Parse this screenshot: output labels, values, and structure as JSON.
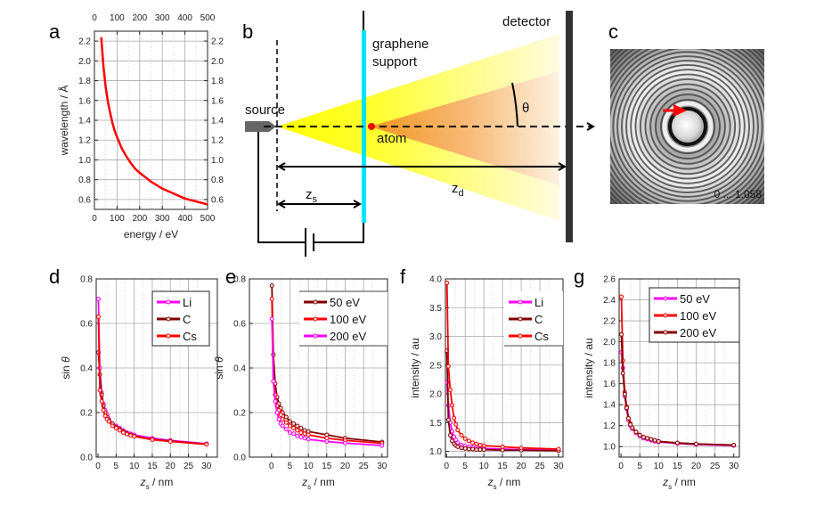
{
  "panel_labels": {
    "a": "a",
    "b": "b",
    "c": "c",
    "d": "d",
    "e": "e",
    "f": "f",
    "g": "g"
  },
  "diagram_b": {
    "source": "source",
    "graphene_line1": "graphene",
    "graphene_line2": "support",
    "detector": "detector",
    "atom": "atom",
    "theta": "θ",
    "zs_var": "z",
    "zs_sub": "s",
    "zd_var": "z",
    "zd_sub": "d",
    "colors": {
      "beam": "#ffff00",
      "cone": "#f08020",
      "support": "#00e5ff",
      "atom": "#ff0000",
      "detector": "#333333"
    }
  },
  "image_c": {
    "scale_label": "0 ... 1.058",
    "arrow_color": "#ff0000"
  },
  "chart_data": [
    {
      "id": "a",
      "type": "line",
      "xlabel": "energy / eV",
      "ylabel": "wavelength / Å",
      "xlim": [
        0,
        500
      ],
      "ylim": [
        0.5,
        2.3
      ],
      "xticks": [
        0,
        100,
        200,
        300,
        400,
        500
      ],
      "yticks": [
        0.6,
        0.8,
        1.0,
        1.2,
        1.4,
        1.6,
        1.8,
        2.0,
        2.2
      ],
      "top_axis_ticks": true,
      "right_axis_ticks": true,
      "grid": true,
      "series": [
        {
          "color": "#ff0000",
          "markers": false,
          "x": [
            30,
            40,
            50,
            60,
            70,
            80,
            90,
            100,
            120,
            140,
            160,
            180,
            200,
            250,
            300,
            350,
            400,
            450,
            500
          ],
          "y": [
            2.24,
            1.94,
            1.73,
            1.58,
            1.47,
            1.37,
            1.29,
            1.23,
            1.12,
            1.04,
            0.97,
            0.91,
            0.87,
            0.78,
            0.71,
            0.66,
            0.61,
            0.58,
            0.55
          ]
        }
      ]
    },
    {
      "id": "d",
      "type": "line",
      "xlabel": {
        "var": "z",
        "sub": "s",
        "unit": " / nm"
      },
      "ylabel": {
        "pre": "sin ",
        "var": "θ"
      },
      "xlim": [
        -0.5,
        33
      ],
      "ylim": [
        0,
        0.8
      ],
      "xticks": [
        0,
        5,
        10,
        15,
        20,
        25,
        30
      ],
      "yticks": [
        0.0,
        0.2,
        0.4,
        0.6,
        0.8
      ],
      "ytick_decimals": 1,
      "grid": true,
      "legend": "top-right",
      "series": [
        {
          "name": "Li",
          "color": "#ff00ff",
          "x": [
            0.1,
            0.5,
            1,
            1.5,
            2,
            2.5,
            3,
            4,
            5,
            6,
            7,
            8,
            9,
            10,
            15,
            20,
            30
          ],
          "y": [
            0.71,
            0.4,
            0.29,
            0.24,
            0.21,
            0.19,
            0.17,
            0.15,
            0.14,
            0.13,
            0.12,
            0.11,
            0.105,
            0.1,
            0.085,
            0.075,
            0.06
          ]
        },
        {
          "name": "C",
          "color": "#800000",
          "x": [
            0.1,
            0.5,
            1,
            1.5,
            2,
            2.5,
            3,
            4,
            5,
            6,
            7,
            8,
            9,
            10,
            15,
            20,
            30
          ],
          "y": [
            0.47,
            0.37,
            0.28,
            0.23,
            0.2,
            0.18,
            0.165,
            0.15,
            0.135,
            0.125,
            0.115,
            0.107,
            0.1,
            0.095,
            0.08,
            0.072,
            0.058
          ]
        },
        {
          "name": "Cs",
          "color": "#ff0000",
          "x": [
            0.1,
            0.5,
            1,
            1.5,
            2,
            2.5,
            3,
            4,
            5,
            6,
            7,
            8,
            9,
            10,
            15,
            20,
            30
          ],
          "y": [
            0.63,
            0.3,
            0.25,
            0.21,
            0.185,
            0.17,
            0.16,
            0.14,
            0.13,
            0.12,
            0.11,
            0.103,
            0.097,
            0.093,
            0.078,
            0.07,
            0.057
          ]
        }
      ]
    },
    {
      "id": "e",
      "type": "line",
      "xlabel": {
        "var": "z",
        "sub": "s",
        "unit": " / nm"
      },
      "ylabel": {
        "pre": "sin ",
        "var": "θ"
      },
      "xlim": [
        -6,
        31.5
      ],
      "ylim": [
        0,
        0.8
      ],
      "xticks": [
        0,
        5,
        10,
        15,
        20,
        25,
        30
      ],
      "yticks": [
        0.0,
        0.2,
        0.4,
        0.6,
        0.8
      ],
      "ytick_decimals": 1,
      "grid": true,
      "legend": "top-right",
      "series": [
        {
          "name": "50 eV",
          "color": "#800000",
          "x": [
            0.1,
            0.5,
            1,
            1.5,
            2,
            2.5,
            3,
            4,
            5,
            6,
            7,
            8,
            9,
            10,
            15,
            20,
            30
          ],
          "y": [
            0.77,
            0.46,
            0.33,
            0.27,
            0.24,
            0.22,
            0.2,
            0.18,
            0.16,
            0.15,
            0.14,
            0.13,
            0.12,
            0.115,
            0.1,
            0.085,
            0.068
          ]
        },
        {
          "name": "100 eV",
          "color": "#ff0000",
          "x": [
            0.1,
            0.5,
            1,
            1.5,
            2,
            2.5,
            3,
            4,
            5,
            6,
            7,
            8,
            9,
            10,
            15,
            20,
            30
          ],
          "y": [
            0.71,
            0.34,
            0.28,
            0.23,
            0.21,
            0.19,
            0.17,
            0.155,
            0.14,
            0.13,
            0.12,
            0.11,
            0.105,
            0.1,
            0.085,
            0.075,
            0.062
          ]
        },
        {
          "name": "200 eV",
          "color": "#ff00ff",
          "x": [
            0.1,
            0.5,
            1,
            1.5,
            2,
            2.5,
            3,
            4,
            5,
            6,
            7,
            8,
            9,
            10,
            15,
            20,
            30
          ],
          "y": [
            0.62,
            0.34,
            0.25,
            0.2,
            0.17,
            0.15,
            0.14,
            0.125,
            0.11,
            0.105,
            0.095,
            0.09,
            0.085,
            0.08,
            0.07,
            0.063,
            0.052
          ]
        }
      ]
    },
    {
      "id": "f",
      "type": "line",
      "xlabel": {
        "var": "z",
        "sub": "s",
        "unit": " / nm"
      },
      "ylabel": "intensity / au",
      "xlim": [
        -0.3,
        31.2
      ],
      "ylim": [
        0.9,
        4.0
      ],
      "xticks": [
        0,
        5,
        10,
        15,
        20,
        25,
        30
      ],
      "yticks": [
        1.0,
        1.5,
        2.0,
        2.5,
        3.0,
        3.5,
        4.0
      ],
      "ytick_decimals": 1,
      "grid": true,
      "legend": "top-right",
      "series": [
        {
          "name": "Li",
          "color": "#ff00ff",
          "x": [
            0.1,
            0.5,
            1,
            1.5,
            2,
            2.5,
            3,
            4,
            5,
            6,
            7,
            8,
            9,
            10,
            15,
            20,
            30
          ],
          "y": [
            2.2,
            1.8,
            1.5,
            1.35,
            1.25,
            1.2,
            1.15,
            1.11,
            1.09,
            1.08,
            1.07,
            1.06,
            1.05,
            1.05,
            1.04,
            1.03,
            1.02
          ]
        },
        {
          "name": "C",
          "color": "#800000",
          "x": [
            0.1,
            0.5,
            1,
            1.5,
            2,
            2.5,
            3,
            4,
            5,
            6,
            7,
            8,
            9,
            10,
            15,
            20,
            30
          ],
          "y": [
            2.75,
            1.55,
            1.28,
            1.18,
            1.13,
            1.1,
            1.08,
            1.06,
            1.05,
            1.04,
            1.04,
            1.03,
            1.03,
            1.03,
            1.02,
            1.02,
            1.01
          ]
        },
        {
          "name": "Cs",
          "color": "#ff0000",
          "x": [
            0.1,
            0.5,
            1,
            1.5,
            2,
            2.5,
            3,
            4,
            5,
            6,
            7,
            8,
            9,
            10,
            15,
            20,
            30
          ],
          "y": [
            3.93,
            2.48,
            2.07,
            1.8,
            1.58,
            1.47,
            1.37,
            1.28,
            1.22,
            1.18,
            1.15,
            1.13,
            1.11,
            1.1,
            1.08,
            1.06,
            1.04
          ]
        }
      ]
    },
    {
      "id": "g",
      "type": "line",
      "xlabel": {
        "var": "z",
        "sub": "s",
        "unit": " / nm"
      },
      "ylabel": "intensity / au",
      "xlim": [
        -0.5,
        31.5
      ],
      "ylim": [
        0.9,
        2.6
      ],
      "xticks": [
        0,
        5,
        10,
        15,
        20,
        25,
        30
      ],
      "yticks": [
        1.0,
        1.2,
        1.4,
        1.6,
        1.8,
        2.0,
        2.2,
        2.4,
        2.6
      ],
      "ytick_decimals": 1,
      "grid": true,
      "legend": "top-right",
      "series": [
        {
          "name": "50 eV",
          "color": "#ff00ff",
          "x": [
            0.1,
            0.5,
            1,
            1.5,
            2,
            2.5,
            3,
            4,
            5,
            6,
            7,
            8,
            9,
            10,
            15,
            20,
            30
          ],
          "y": [
            1.9,
            1.75,
            1.48,
            1.36,
            1.25,
            1.2,
            1.17,
            1.13,
            1.1,
            1.08,
            1.07,
            1.06,
            1.05,
            1.045,
            1.03,
            1.02,
            1.01
          ]
        },
        {
          "name": "100 eV",
          "color": "#ff0000",
          "x": [
            0.1,
            0.5,
            1,
            1.5,
            2,
            2.5,
            3,
            4,
            5,
            6,
            7,
            8,
            9,
            10,
            15,
            20,
            30
          ],
          "y": [
            2.43,
            1.82,
            1.52,
            1.38,
            1.27,
            1.22,
            1.18,
            1.14,
            1.11,
            1.09,
            1.08,
            1.07,
            1.06,
            1.05,
            1.035,
            1.025,
            1.015
          ]
        },
        {
          "name": "200 eV",
          "color": "#800000",
          "x": [
            0.1,
            0.5,
            1,
            1.5,
            2,
            2.5,
            3,
            4,
            5,
            6,
            7,
            8,
            9,
            10,
            15,
            20,
            30
          ],
          "y": [
            2.07,
            1.7,
            1.5,
            1.37,
            1.27,
            1.21,
            1.18,
            1.14,
            1.11,
            1.09,
            1.08,
            1.07,
            1.06,
            1.05,
            1.035,
            1.025,
            1.015
          ]
        }
      ]
    }
  ]
}
